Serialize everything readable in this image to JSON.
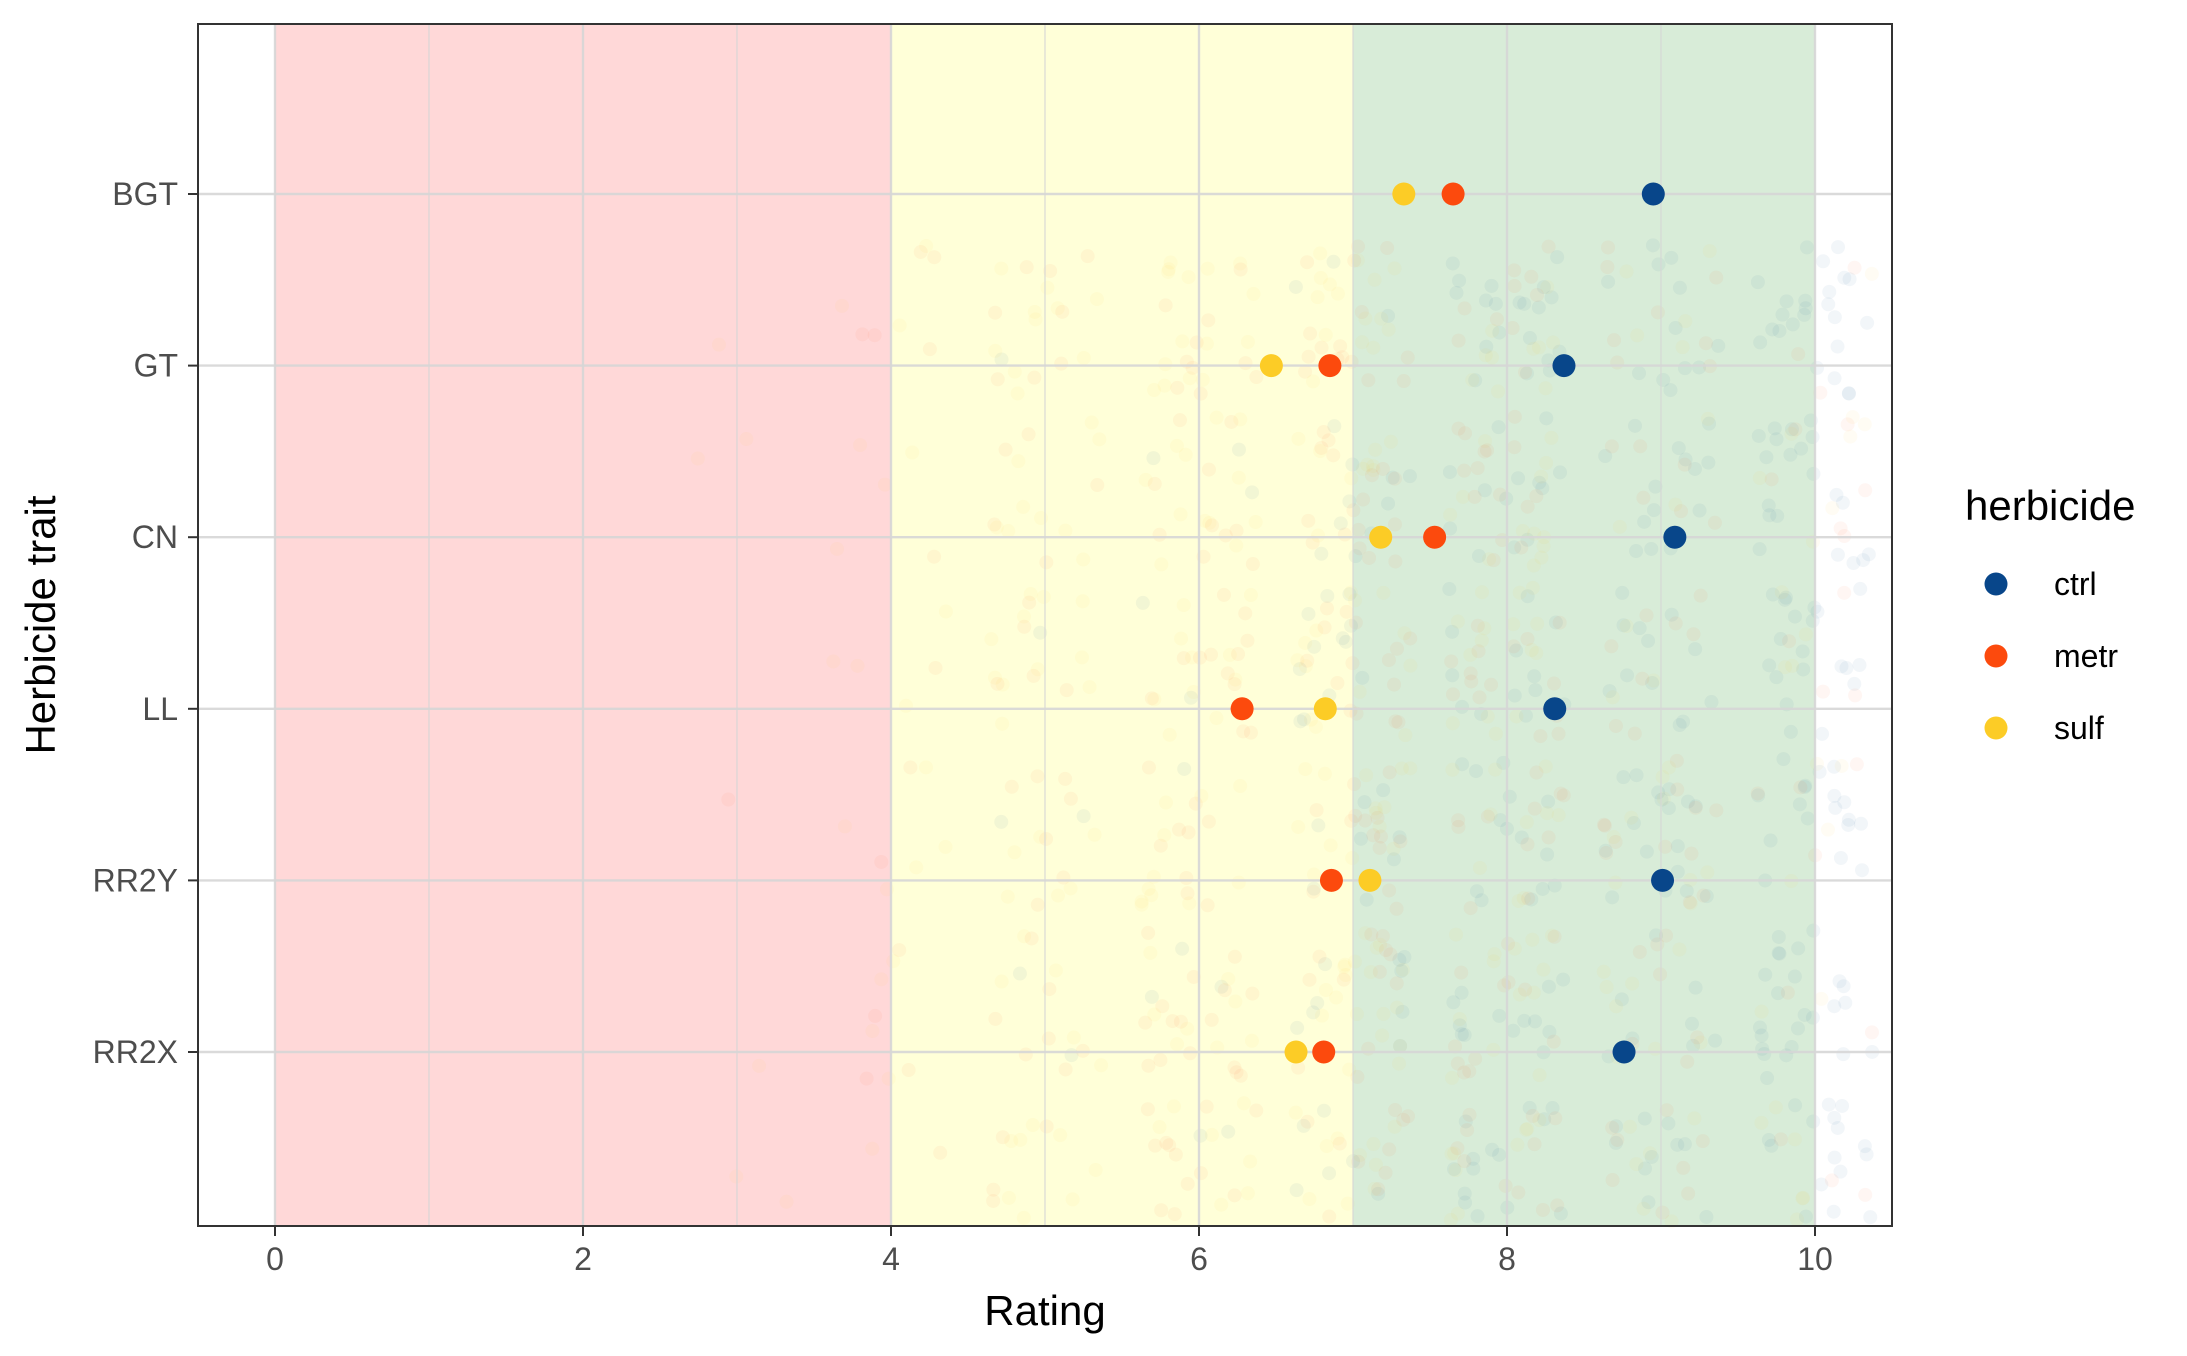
{
  "chart_data": {
    "type": "scatter",
    "xlabel": "Rating",
    "ylabel": "Herbicide trait",
    "xlim": [
      -0.5,
      10.5
    ],
    "x_ticks": [
      "0",
      "2",
      "4",
      "6",
      "8",
      "10"
    ],
    "categories": [
      "BGT",
      "GT",
      "CN",
      "LL",
      "RR2Y",
      "RR2X"
    ],
    "grid": true,
    "bands": [
      {
        "from": 0,
        "to": 4,
        "color": "#ff9999"
      },
      {
        "from": 4,
        "to": 7,
        "color": "#ffff99"
      },
      {
        "from": 7,
        "to": 10,
        "color": "#99cc99"
      }
    ],
    "legend": {
      "title": "herbicide",
      "position": "right",
      "entries": [
        {
          "label": "ctrl",
          "color": "#08468a"
        },
        {
          "label": "metr",
          "color": "#fc4a0d"
        },
        {
          "label": "sulf",
          "color": "#fccc26"
        }
      ]
    },
    "series": [
      {
        "name": "ctrl",
        "color": "#08468a",
        "values": [
          8.95,
          8.37,
          9.09,
          8.31,
          9.01,
          8.76
        ]
      },
      {
        "name": "metr",
        "color": "#fc4a0d",
        "values": [
          7.65,
          6.85,
          7.53,
          6.28,
          6.86,
          6.81
        ]
      },
      {
        "name": "sulf",
        "color": "#fccc26",
        "values": [
          7.33,
          6.47,
          7.18,
          6.82,
          7.11,
          6.63
        ]
      }
    ],
    "background_jitter": {
      "points_per_category": 180,
      "alpha": 0.05
    }
  }
}
